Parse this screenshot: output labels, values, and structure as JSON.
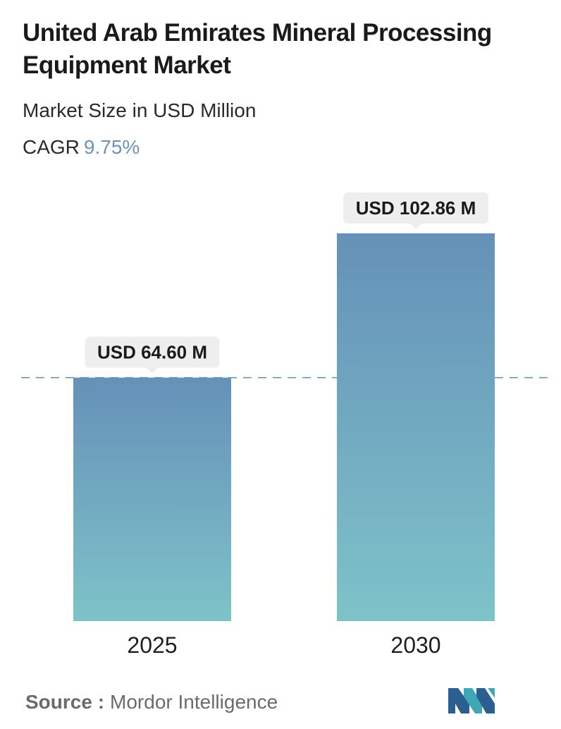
{
  "header": {
    "title": "United Arab Emirates Mineral Processing Equipment Market",
    "subtitle": "Market Size in USD Million",
    "cagr_label": "CAGR",
    "cagr_value": "9.75%"
  },
  "chart_data": {
    "type": "bar",
    "categories": [
      "2025",
      "2030"
    ],
    "values": [
      64.6,
      102.86
    ],
    "data_labels": [
      "USD 64.60 M",
      "USD 102.86 M"
    ],
    "reference_line": 64.6,
    "ylim": [
      0,
      102.86
    ],
    "colors": {
      "bar_top": "#6591b8",
      "bar_bottom": "#7ec3c9",
      "label_bg": "#eeeeee",
      "dash": "#5f8fa8"
    }
  },
  "footer": {
    "source_label": "Source :",
    "source_name": "Mordor Intelligence",
    "logo_colors": [
      "#2b5f8f",
      "#3fa7b5"
    ]
  }
}
